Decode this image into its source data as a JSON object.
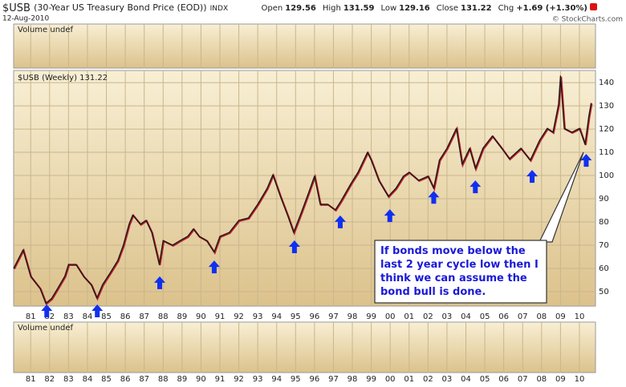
{
  "chart_data": {
    "type": "line",
    "symbol": "$USB",
    "title": "(30-Year US Treasury Bond Price (EOD))",
    "exchange": "INDX",
    "date": "12-Aug-2010",
    "quote": [
      {
        "label": "Open",
        "value": "129.56"
      },
      {
        "label": "High",
        "value": "131.59"
      },
      {
        "label": "Low",
        "value": "129.16"
      },
      {
        "label": "Close",
        "value": "131.22"
      },
      {
        "label": "Chg",
        "value": "+1.69 (+1.30%)"
      }
    ],
    "credit": "© StockCharts.com",
    "panel_labels": [
      "Volume undef",
      "Volume undef"
    ],
    "x": [
      80.1,
      80.6,
      81.0,
      81.5,
      81.8,
      82.1,
      82.4,
      82.8,
      83.0,
      83.4,
      83.8,
      84.2,
      84.5,
      84.8,
      85.2,
      85.6,
      85.9,
      86.2,
      86.4,
      86.8,
      87.1,
      87.4,
      87.8,
      88.0,
      88.5,
      88.9,
      89.3,
      89.6,
      89.9,
      90.3,
      90.7,
      91.0,
      91.5,
      92.0,
      92.5,
      93.0,
      93.5,
      93.8,
      94.2,
      94.6,
      94.9,
      95.3,
      95.7,
      96.0,
      96.3,
      96.7,
      97.1,
      97.4,
      97.9,
      98.3,
      98.8,
      99.0,
      99.4,
      99.9,
      100.3,
      100.7,
      101.0,
      101.5,
      102.0,
      102.3,
      102.6,
      103.0,
      103.5,
      103.8,
      104.2,
      104.5,
      104.9,
      105.4,
      105.9,
      106.3,
      106.9,
      107.4,
      107.9,
      108.3,
      108.6,
      108.9,
      109.0,
      109.2,
      109.6,
      110.0,
      110.3,
      110.5,
      110.62
    ],
    "series": [
      {
        "name": "$USB (Weekly) 131.22",
        "color": "#1a1a1a",
        "values": [
          60,
          68,
          56.6,
          51.4,
          45,
          47,
          51,
          56.6,
          61.7,
          61.7,
          56.6,
          53,
          47.2,
          53,
          58,
          63.4,
          70,
          79,
          83,
          79,
          80.7,
          75.5,
          61.7,
          72,
          70,
          72,
          73.8,
          77,
          73.8,
          72,
          67,
          73.8,
          75.5,
          80.7,
          81.7,
          87.6,
          94.5,
          100.3,
          91,
          82.4,
          75.5,
          84,
          92.8,
          99.7,
          87.6,
          87.6,
          85.2,
          89,
          96.2,
          101.4,
          110,
          106.6,
          97.9,
          91,
          94.5,
          99.7,
          101.4,
          97.9,
          99.7,
          94.5,
          106.6,
          111.7,
          120.3,
          104.8,
          111.7,
          103,
          111.7,
          117,
          111.7,
          107.2,
          111.7,
          106.6,
          115.2,
          120.3,
          118.6,
          130.7,
          142.8,
          120.3,
          118.6,
          120.3,
          113.4,
          125.5,
          131.22
        ]
      }
    ],
    "markers": [
      {
        "x": 81.85,
        "y": 44.5
      },
      {
        "x": 84.52,
        "y": 44.5
      },
      {
        "x": 87.82,
        "y": 56.6
      },
      {
        "x": 90.7,
        "y": 63.4
      },
      {
        "x": 94.94,
        "y": 72.1
      },
      {
        "x": 97.36,
        "y": 82.8
      },
      {
        "x": 99.98,
        "y": 85.5
      },
      {
        "x": 102.3,
        "y": 93.4
      },
      {
        "x": 104.5,
        "y": 97.9
      },
      {
        "x": 107.5,
        "y": 102.4
      },
      {
        "x": 110.36,
        "y": 109.3
      }
    ],
    "marker_color": "#1030f0",
    "annotation": [
      "If bonds move below the",
      "last 2 year cycle low then I",
      "think we can assume the",
      "bond bull is done."
    ],
    "xlim": [
      80.1,
      110.85
    ],
    "xticks": [
      81,
      82,
      83,
      84,
      85,
      86,
      87,
      88,
      89,
      90,
      91,
      92,
      93,
      94,
      95,
      96,
      97,
      98,
      99,
      {
        "value": 100,
        "label": "00"
      },
      {
        "value": 101,
        "label": "01"
      },
      {
        "value": 102,
        "label": "02"
      },
      {
        "value": 103,
        "label": "03"
      },
      {
        "value": 104,
        "label": "04"
      },
      {
        "value": 105,
        "label": "05"
      },
      {
        "value": 106,
        "label": "06"
      },
      {
        "value": 107,
        "label": "07"
      },
      {
        "value": 108,
        "label": "08"
      },
      {
        "value": 109,
        "label": "09"
      },
      {
        "value": 110,
        "label": "10"
      }
    ],
    "ylim": [
      43.8,
      145.2
    ],
    "yticks": [
      50,
      60,
      70,
      80,
      90,
      100,
      110,
      120,
      130,
      140
    ],
    "grid": true
  }
}
